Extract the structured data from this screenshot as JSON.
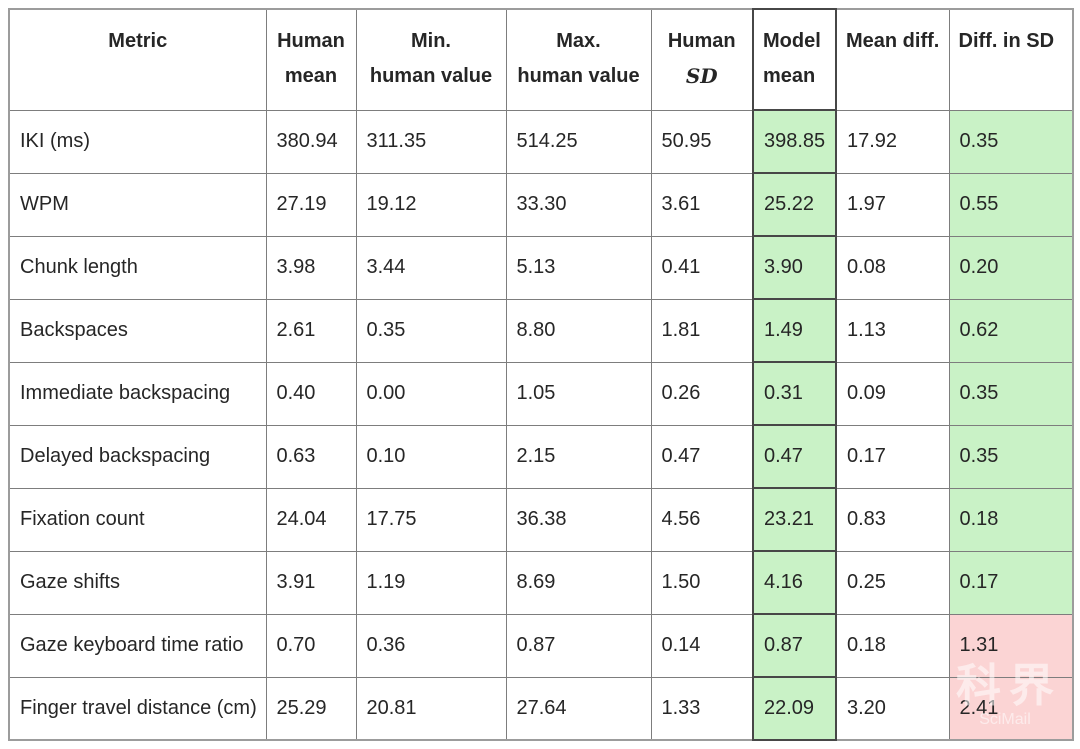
{
  "table": {
    "headers": [
      {
        "line1": "Metric",
        "line2": "",
        "align": "center"
      },
      {
        "line1": "Human",
        "line2": "mean",
        "align": "center"
      },
      {
        "line1": "Min.",
        "line2": "human value",
        "align": "center"
      },
      {
        "line1": "Max.",
        "line2": "human value",
        "align": "center"
      },
      {
        "line1": "Human",
        "line2": "SD",
        "align": "center",
        "line2_style": "math-italic"
      },
      {
        "line1": "Model",
        "line2": "mean",
        "align": "left",
        "highlight": "model-column"
      },
      {
        "line1": "Mean diff.",
        "line2": "",
        "align": "left"
      },
      {
        "line1": "Diff. in SD",
        "line2": "",
        "align": "left"
      }
    ],
    "column_keys": [
      "metric",
      "human_mean",
      "min_human_value",
      "max_human_value",
      "human_sd",
      "model_mean",
      "mean_diff",
      "diff_in_sd"
    ],
    "rows": [
      {
        "metric": "IKI (ms)",
        "human_mean": "380.94",
        "min_human_value": "311.35",
        "max_human_value": "514.25",
        "human_sd": "50.95",
        "model_mean": "398.85",
        "mean_diff": "17.92",
        "diff_in_sd": "0.35",
        "diff_color": "green"
      },
      {
        "metric": "WPM",
        "human_mean": "27.19",
        "min_human_value": "19.12",
        "max_human_value": "33.30",
        "human_sd": "3.61",
        "model_mean": "25.22",
        "mean_diff": "1.97",
        "diff_in_sd": "0.55",
        "diff_color": "green"
      },
      {
        "metric": "Chunk length",
        "human_mean": "3.98",
        "min_human_value": "3.44",
        "max_human_value": "5.13",
        "human_sd": "0.41",
        "model_mean": "3.90",
        "mean_diff": "0.08",
        "diff_in_sd": "0.20",
        "diff_color": "green"
      },
      {
        "metric": "Backspaces",
        "human_mean": "2.61",
        "min_human_value": "0.35",
        "max_human_value": "8.80",
        "human_sd": "1.81",
        "model_mean": "1.49",
        "mean_diff": "1.13",
        "diff_in_sd": "0.62",
        "diff_color": "green"
      },
      {
        "metric": "Immediate backspacing",
        "human_mean": "0.40",
        "min_human_value": "0.00",
        "max_human_value": "1.05",
        "human_sd": "0.26",
        "model_mean": "0.31",
        "mean_diff": "0.09",
        "diff_in_sd": "0.35",
        "diff_color": "green"
      },
      {
        "metric": "Delayed backspacing",
        "human_mean": "0.63",
        "min_human_value": "0.10",
        "max_human_value": "2.15",
        "human_sd": "0.47",
        "model_mean": "0.47",
        "mean_diff": "0.17",
        "diff_in_sd": "0.35",
        "diff_color": "green"
      },
      {
        "metric": "Fixation count",
        "human_mean": "24.04",
        "min_human_value": "17.75",
        "max_human_value": "36.38",
        "human_sd": "4.56",
        "model_mean": "23.21",
        "mean_diff": "0.83",
        "diff_in_sd": "0.18",
        "diff_color": "green"
      },
      {
        "metric": "Gaze shifts",
        "human_mean": "3.91",
        "min_human_value": "1.19",
        "max_human_value": "8.69",
        "human_sd": "1.50",
        "model_mean": "4.16",
        "mean_diff": "0.25",
        "diff_in_sd": "0.17",
        "diff_color": "green"
      },
      {
        "metric": "Gaze keyboard time ratio",
        "human_mean": "0.70",
        "min_human_value": "0.36",
        "max_human_value": "0.87",
        "human_sd": "0.14",
        "model_mean": "0.87",
        "mean_diff": "0.18",
        "diff_in_sd": "1.31",
        "diff_color": "red"
      },
      {
        "metric": "Finger travel distance (cm)",
        "human_mean": "25.29",
        "min_human_value": "20.81",
        "max_human_value": "27.64",
        "human_sd": "1.33",
        "model_mean": "22.09",
        "mean_diff": "3.20",
        "diff_in_sd": "2.41",
        "diff_color": "red"
      }
    ]
  },
  "colors": {
    "model_mean_fill": "#c9f2c6",
    "within_sd_fill": "#c9f2c6",
    "exceeds_sd_fill": "#fbd4d4",
    "grid_line": "#7d7d7d",
    "model_column_border": "#474747"
  },
  "watermark": {
    "line1": "科界",
    "line2": "SciMail"
  }
}
